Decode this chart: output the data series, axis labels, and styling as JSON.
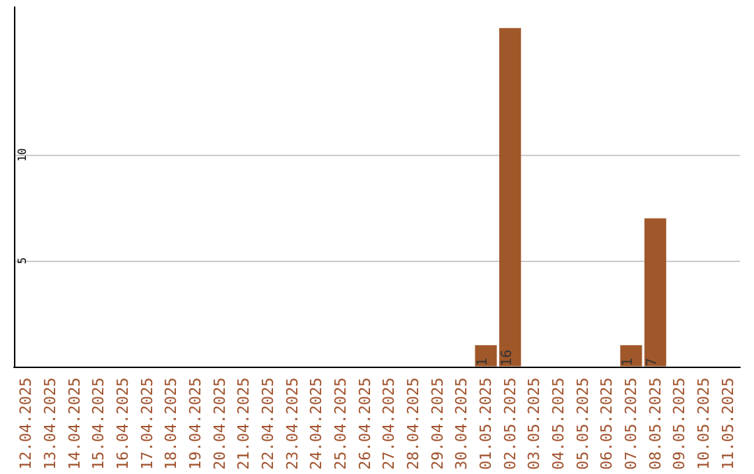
{
  "chart_data": {
    "type": "bar",
    "categories": [
      "12.04.2025",
      "13.04.2025",
      "14.04.2025",
      "15.04.2025",
      "16.04.2025",
      "17.04.2025",
      "18.04.2025",
      "19.04.2025",
      "20.04.2025",
      "21.04.2025",
      "22.04.2025",
      "23.04.2025",
      "24.04.2025",
      "25.04.2025",
      "26.04.2025",
      "27.04.2025",
      "28.04.2025",
      "29.04.2025",
      "30.04.2025",
      "01.05.2025",
      "02.05.2025",
      "03.05.2025",
      "04.05.2025",
      "05.05.2025",
      "06.05.2025",
      "07.05.2025",
      "08.05.2025",
      "09.05.2025",
      "10.05.2025",
      "11.05.2025"
    ],
    "values": [
      0,
      0,
      0,
      0,
      0,
      0,
      0,
      0,
      0,
      0,
      0,
      0,
      0,
      0,
      0,
      0,
      0,
      0,
      0,
      1,
      16,
      0,
      0,
      0,
      0,
      1,
      7,
      0,
      0,
      0
    ],
    "value_labels": [
      null,
      null,
      null,
      null,
      null,
      null,
      null,
      null,
      null,
      null,
      null,
      null,
      null,
      null,
      null,
      null,
      null,
      null,
      null,
      "1",
      "16",
      null,
      null,
      null,
      null,
      "1",
      "7",
      null,
      null,
      null
    ],
    "color": "#a0582a",
    "ylim": [
      0,
      17
    ],
    "yticks": [
      5,
      10
    ],
    "grid": "y"
  }
}
